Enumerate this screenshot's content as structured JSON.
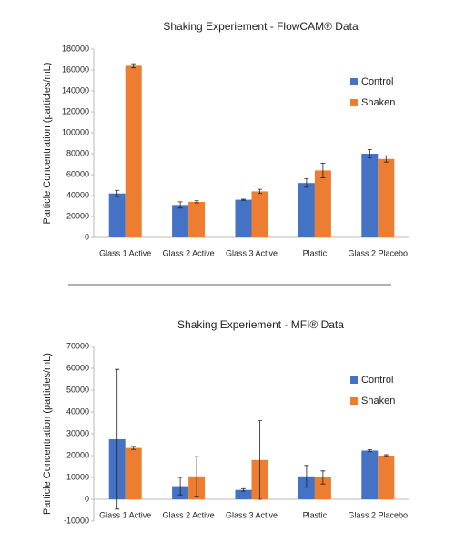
{
  "chart_data": [
    {
      "type": "bar",
      "title": "Shaking Experiement - FlowCAM® Data",
      "y_label": "Particle Concentration (particles/mL)",
      "categories": [
        "Glass 1 Active",
        "Glass 2 Active",
        "Glass 3 Active",
        "Plastic",
        "Glass 2 Placebo"
      ],
      "series": [
        {
          "name": "Control",
          "color": "#4472c4",
          "values": [
            42000,
            31000,
            36000,
            52000,
            80000
          ],
          "errors": [
            3000,
            3000,
            500,
            4000,
            4000
          ]
        },
        {
          "name": "Shaken",
          "color": "#ed7d31",
          "values": [
            164000,
            34000,
            44000,
            64000,
            75000
          ],
          "errors": [
            2000,
            1000,
            2000,
            7000,
            3000
          ]
        }
      ],
      "ylim": [
        0,
        180000
      ],
      "yticks": [
        0,
        20000,
        40000,
        60000,
        80000,
        100000,
        120000,
        140000,
        160000,
        180000
      ],
      "legend": "right"
    },
    {
      "type": "bar",
      "title": "Shaking Experiement - MFI® Data",
      "y_label": "Particle Concentration (particles/mL)",
      "categories": [
        "Glass 1 Active",
        "Glass 2 Active",
        "Glass 3 Active",
        "Plastic",
        "Glass 2 Placebo"
      ],
      "series": [
        {
          "name": "Control",
          "color": "#4472c4",
          "values": [
            27500,
            6000,
            4300,
            10500,
            22300
          ],
          "errors": [
            32000,
            4000,
            600,
            5000,
            400
          ]
        },
        {
          "name": "Shaken",
          "color": "#ed7d31",
          "values": [
            23500,
            10500,
            18000,
            10000,
            20000
          ],
          "errors": [
            700,
            9000,
            18000,
            3000,
            400
          ]
        }
      ],
      "ylim": [
        -10000,
        70000
      ],
      "yticks": [
        -10000,
        0,
        10000,
        20000,
        30000,
        40000,
        50000,
        60000,
        70000
      ],
      "legend": "right"
    }
  ]
}
